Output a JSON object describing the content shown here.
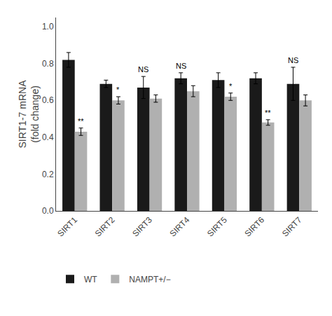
{
  "chart_data": {
    "type": "bar",
    "ylabel": "SIRT1-7 mRNA\n(fold change)",
    "categories": [
      "SIRT1",
      "SIRT2",
      "SIRT3",
      "SIRT4",
      "SIRT5",
      "SIRT6",
      "SIRT7"
    ],
    "series": [
      {
        "name": "WT",
        "color": "#1a1a1a",
        "values": [
          0.82,
          0.69,
          0.67,
          0.72,
          0.71,
          0.72,
          0.69
        ],
        "errors": [
          0.04,
          0.02,
          0.06,
          0.03,
          0.04,
          0.03,
          0.09
        ]
      },
      {
        "name": "NAMPT+/−",
        "color": "#b0b0b0",
        "values": [
          0.43,
          0.6,
          0.61,
          0.65,
          0.62,
          0.48,
          0.6
        ],
        "errors": [
          0.02,
          0.02,
          0.02,
          0.03,
          0.02,
          0.015,
          0.03
        ]
      }
    ],
    "annotations": [
      {
        "category": "SIRT1",
        "series": "NAMPT+/−",
        "text": "**"
      },
      {
        "category": "SIRT2",
        "series": "NAMPT+/−",
        "text": "*"
      },
      {
        "category": "SIRT3",
        "series": "WT",
        "text": "NS"
      },
      {
        "category": "SIRT4",
        "series": "WT",
        "text": "NS"
      },
      {
        "category": "SIRT5",
        "series": "NAMPT+/−",
        "text": "*"
      },
      {
        "category": "SIRT6",
        "series": "NAMPT+/−",
        "text": "**"
      },
      {
        "category": "SIRT7",
        "series": "WT",
        "text": "NS"
      }
    ],
    "ylim": [
      0.0,
      1.05
    ],
    "yticks": [
      {
        "value": 0,
        "label": "0.0"
      },
      0.2,
      0.4,
      0.6,
      0.8,
      {
        "value": 1,
        "label": "1.0"
      }
    ],
    "grid": false,
    "legend": "bottom"
  }
}
